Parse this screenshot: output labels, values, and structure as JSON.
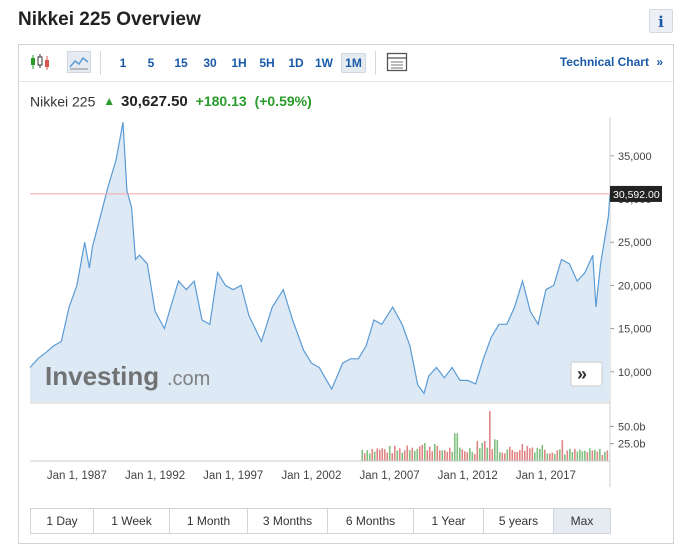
{
  "header": {
    "title": "Nikkei 225 Overview",
    "info_label": "i"
  },
  "toolbar": {
    "intervals": [
      "1",
      "5",
      "15",
      "30",
      "1H",
      "5H",
      "1D",
      "1W",
      "1M"
    ],
    "active_interval": "1M",
    "technical_chart_label": "Technical Chart",
    "icons": [
      "candlestick-icon",
      "area-chart-icon",
      "table-icon",
      "double-chevron-right-icon"
    ]
  },
  "quote": {
    "name": "Nikkei 225",
    "price": "30,627.50",
    "change": "+180.13",
    "change_pct": "(+0.59%)"
  },
  "watermark": {
    "brand": "Investing",
    "suffix": ".com"
  },
  "current_price_label": "30,592.00",
  "range_buttons": [
    "1 Day",
    "1 Week",
    "1 Month",
    "3 Months",
    "6 Months",
    "1 Year",
    "5 years",
    "Max"
  ],
  "active_range": "Max",
  "colors": {
    "line": "#5b9bd5",
    "area": "#dde9f4",
    "up": "#2b9b2b",
    "vol_up": "#7fbf7f",
    "vol_down": "#e08585",
    "price_line": "#f3a8a8",
    "accent": "#1a5aa8"
  },
  "chart_data": {
    "type": "area",
    "title": "",
    "x_start": 1984.0,
    "x_ticks": [
      "Jan 1, 1987",
      "Jan 1, 1992",
      "Jan 1, 1997",
      "Jan 1, 2002",
      "Jan 1, 2007",
      "Jan 1, 2012",
      "Jan 1, 2017"
    ],
    "y_ticks": [
      "35,000",
      "30,000",
      "25,000",
      "20,000",
      "15,000",
      "10,000"
    ],
    "ylim": [
      6500,
      39500
    ],
    "current_price": 30592,
    "series": [
      {
        "x": [
          1984.0,
          1984.5,
          1985.0,
          1985.5,
          1986.0,
          1986.5,
          1987.0,
          1987.5,
          1987.8,
          1988.0,
          1988.5,
          1989.0,
          1989.5,
          1989.95,
          1990.2,
          1990.5,
          1990.75,
          1991.0,
          1991.5,
          1992.0,
          1992.6,
          1993.0,
          1993.5,
          1994.0,
          1994.5,
          1995.0,
          1995.5,
          1996.0,
          1996.5,
          1997.0,
          1997.5,
          1998.0,
          1998.8,
          1999.5,
          2000.2,
          2000.8,
          2001.5,
          2002.0,
          2002.5,
          2003.3,
          2004.0,
          2004.5,
          2005.0,
          2005.5,
          2006.0,
          2006.5,
          2007.2,
          2007.8,
          2008.3,
          2008.8,
          2009.2,
          2009.5,
          2010.0,
          2010.5,
          2011.0,
          2011.5,
          2012.0,
          2012.5,
          2013.0,
          2013.5,
          2014.0,
          2014.5,
          2015.0,
          2015.5,
          2016.0,
          2016.5,
          2017.0,
          2017.5,
          2018.0,
          2018.5,
          2019.0,
          2019.5,
          2020.0,
          2020.2,
          2020.5,
          2021.0,
          2021.1
        ],
        "y": [
          10500,
          11500,
          12200,
          13000,
          13500,
          17500,
          20000,
          25000,
          22000,
          24500,
          28000,
          31500,
          34500,
          38900,
          31000,
          29000,
          23000,
          23500,
          22500,
          17000,
          15000,
          17500,
          20500,
          19500,
          20500,
          16000,
          15500,
          21500,
          20000,
          19500,
          20000,
          16500,
          13500,
          17500,
          19500,
          16000,
          12500,
          11000,
          10500,
          8000,
          11000,
          11500,
          11500,
          13000,
          16000,
          15500,
          17500,
          15500,
          13000,
          8500,
          7500,
          9500,
          10500,
          9300,
          10500,
          9000,
          9000,
          8600,
          11500,
          14000,
          15500,
          15500,
          17500,
          20500,
          17000,
          15500,
          19500,
          20000,
          23000,
          22500,
          20500,
          21500,
          23500,
          17500,
          22500,
          28000,
          30600
        ]
      }
    ],
    "volume": {
      "ylim": [
        0,
        75
      ],
      "unit": "b",
      "y_ticks": [
        "50.0b",
        "25.0b"
      ]
    }
  }
}
